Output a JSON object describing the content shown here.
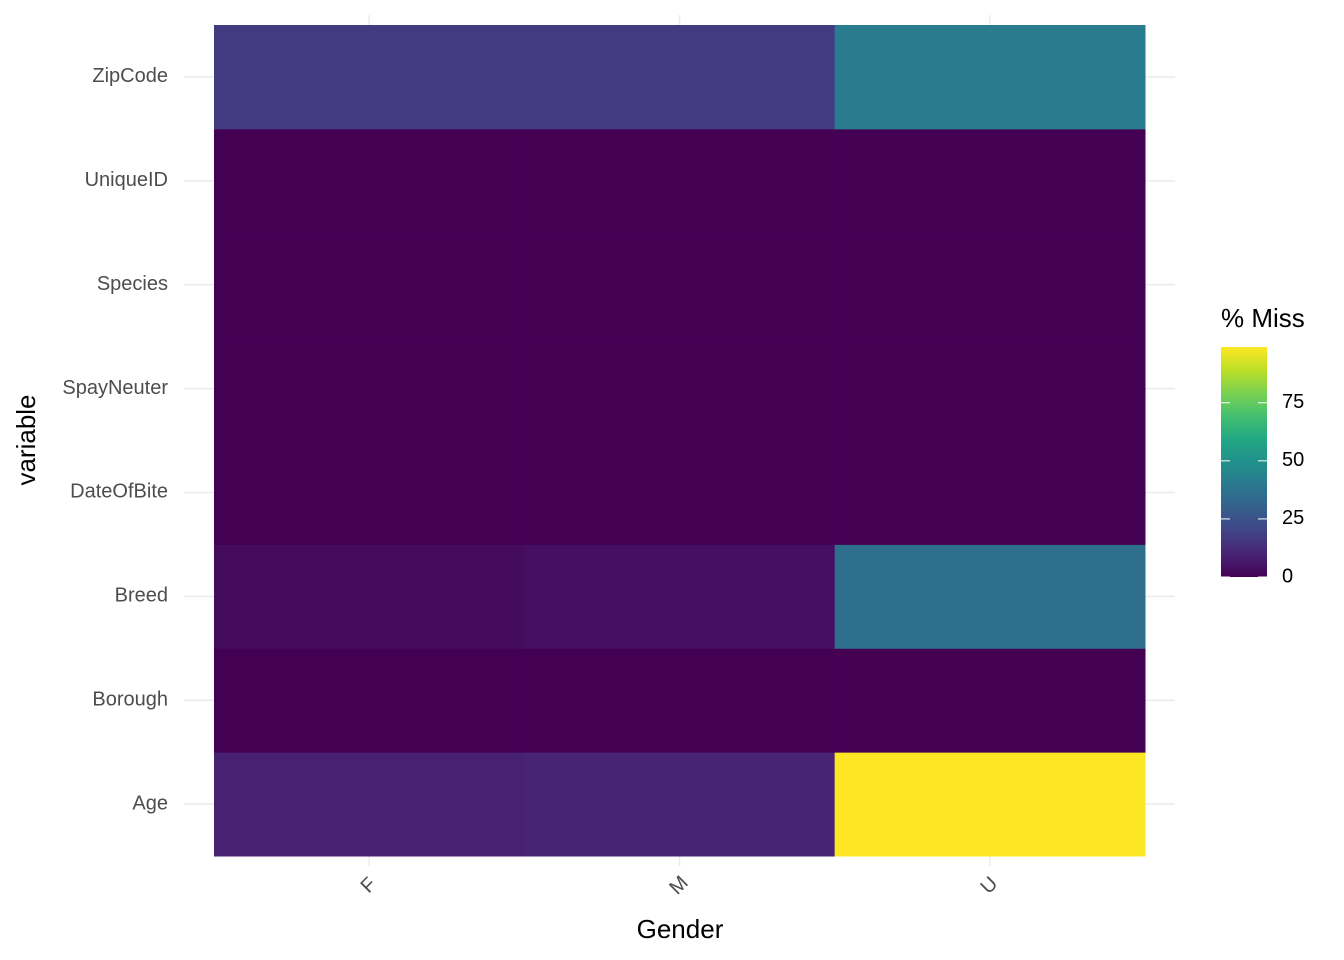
{
  "chart_data": {
    "type": "heatmap",
    "x_label": "Gender",
    "y_label": "variable",
    "x_categories": [
      "F",
      "M",
      "U"
    ],
    "y_categories": [
      "Age",
      "Borough",
      "Breed",
      "DateOfBite",
      "SpayNeuter",
      "Species",
      "UniqueID",
      "ZipCode"
    ],
    "values": [
      [
        9,
        10,
        99
      ],
      [
        0,
        0,
        0
      ],
      [
        3,
        4,
        36
      ],
      [
        0,
        0,
        0
      ],
      [
        0,
        0,
        0
      ],
      [
        0,
        0,
        0
      ],
      [
        0,
        0,
        0
      ],
      [
        17,
        17,
        41
      ]
    ],
    "colormap": "viridis",
    "legend_title": "% Miss",
    "clim": [
      0,
      99
    ],
    "cticks": [
      0,
      25,
      50,
      75
    ],
    "grid": true
  }
}
